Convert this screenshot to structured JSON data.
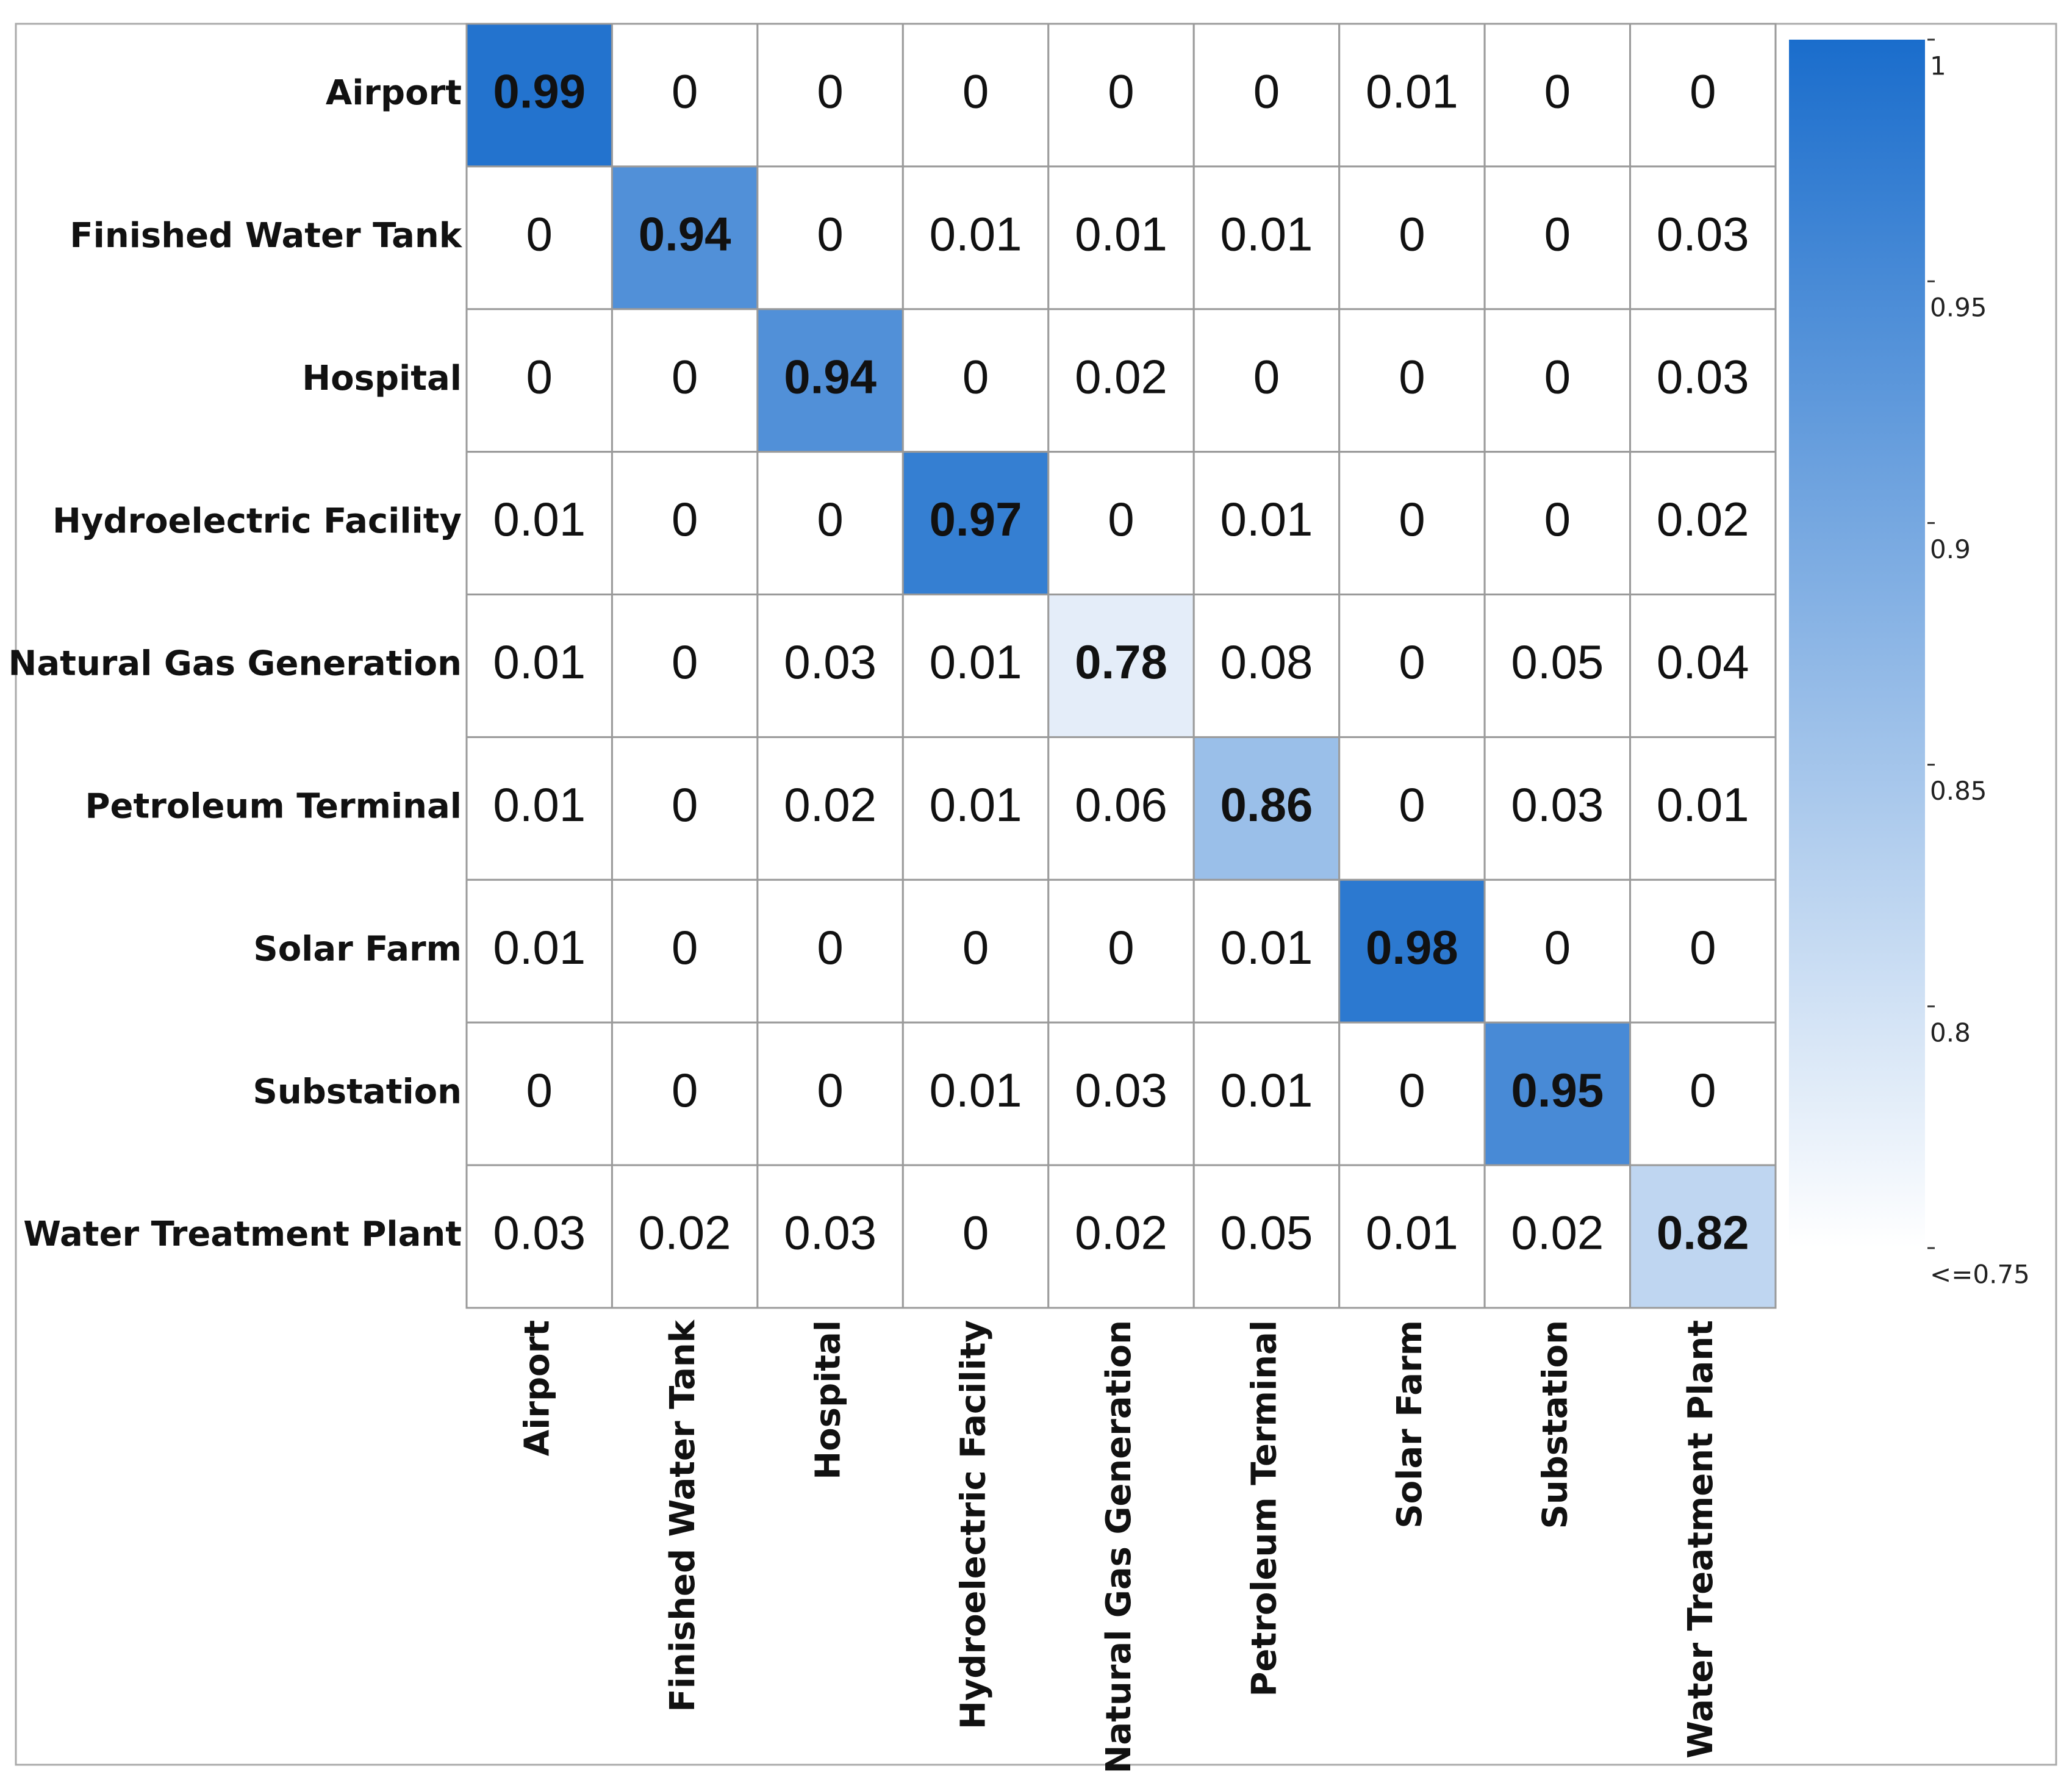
{
  "chart_data": {
    "type": "heatmap",
    "rows": [
      "Airport",
      "Finished Water Tank",
      "Hospital",
      "Hydroelectric Facility",
      "Natural Gas Generation",
      "Petroleum Terminal",
      "Solar Farm",
      "Substation",
      "Water Treatment Plant"
    ],
    "columns": [
      "Airport",
      "Finished Water Tank",
      "Hospital",
      "Hydroelectric Facility",
      "Natural Gas Generation",
      "Petroleum Terminal",
      "Solar Farm",
      "Substation",
      "Water Treatment Plant"
    ],
    "values": [
      [
        0.99,
        0,
        0,
        0,
        0,
        0,
        0.01,
        0,
        0
      ],
      [
        0,
        0.94,
        0,
        0.01,
        0.01,
        0.01,
        0,
        0,
        0.03
      ],
      [
        0,
        0,
        0.94,
        0,
        0.02,
        0,
        0,
        0,
        0.03
      ],
      [
        0.01,
        0,
        0,
        0.97,
        0,
        0.01,
        0,
        0,
        0.02
      ],
      [
        0.01,
        0,
        0.03,
        0.01,
        0.78,
        0.08,
        0,
        0.05,
        0.04
      ],
      [
        0.01,
        0,
        0.02,
        0.01,
        0.06,
        0.86,
        0,
        0.03,
        0.01
      ],
      [
        0.01,
        0,
        0,
        0,
        0,
        0.01,
        0.98,
        0,
        0
      ],
      [
        0,
        0,
        0,
        0.01,
        0.03,
        0.01,
        0,
        0.95,
        0
      ],
      [
        0.03,
        0.02,
        0.03,
        0,
        0.02,
        0.05,
        0.01,
        0.02,
        0.82
      ]
    ],
    "zlim": [
      0.75,
      1
    ],
    "zticks": [
      1,
      0.95,
      0.9,
      0.85,
      0.8,
      {
        "value": 0.75,
        "label": "<=0.75"
      }
    ],
    "color_low": "#ffffff",
    "color_high": "#1a6dcc"
  }
}
